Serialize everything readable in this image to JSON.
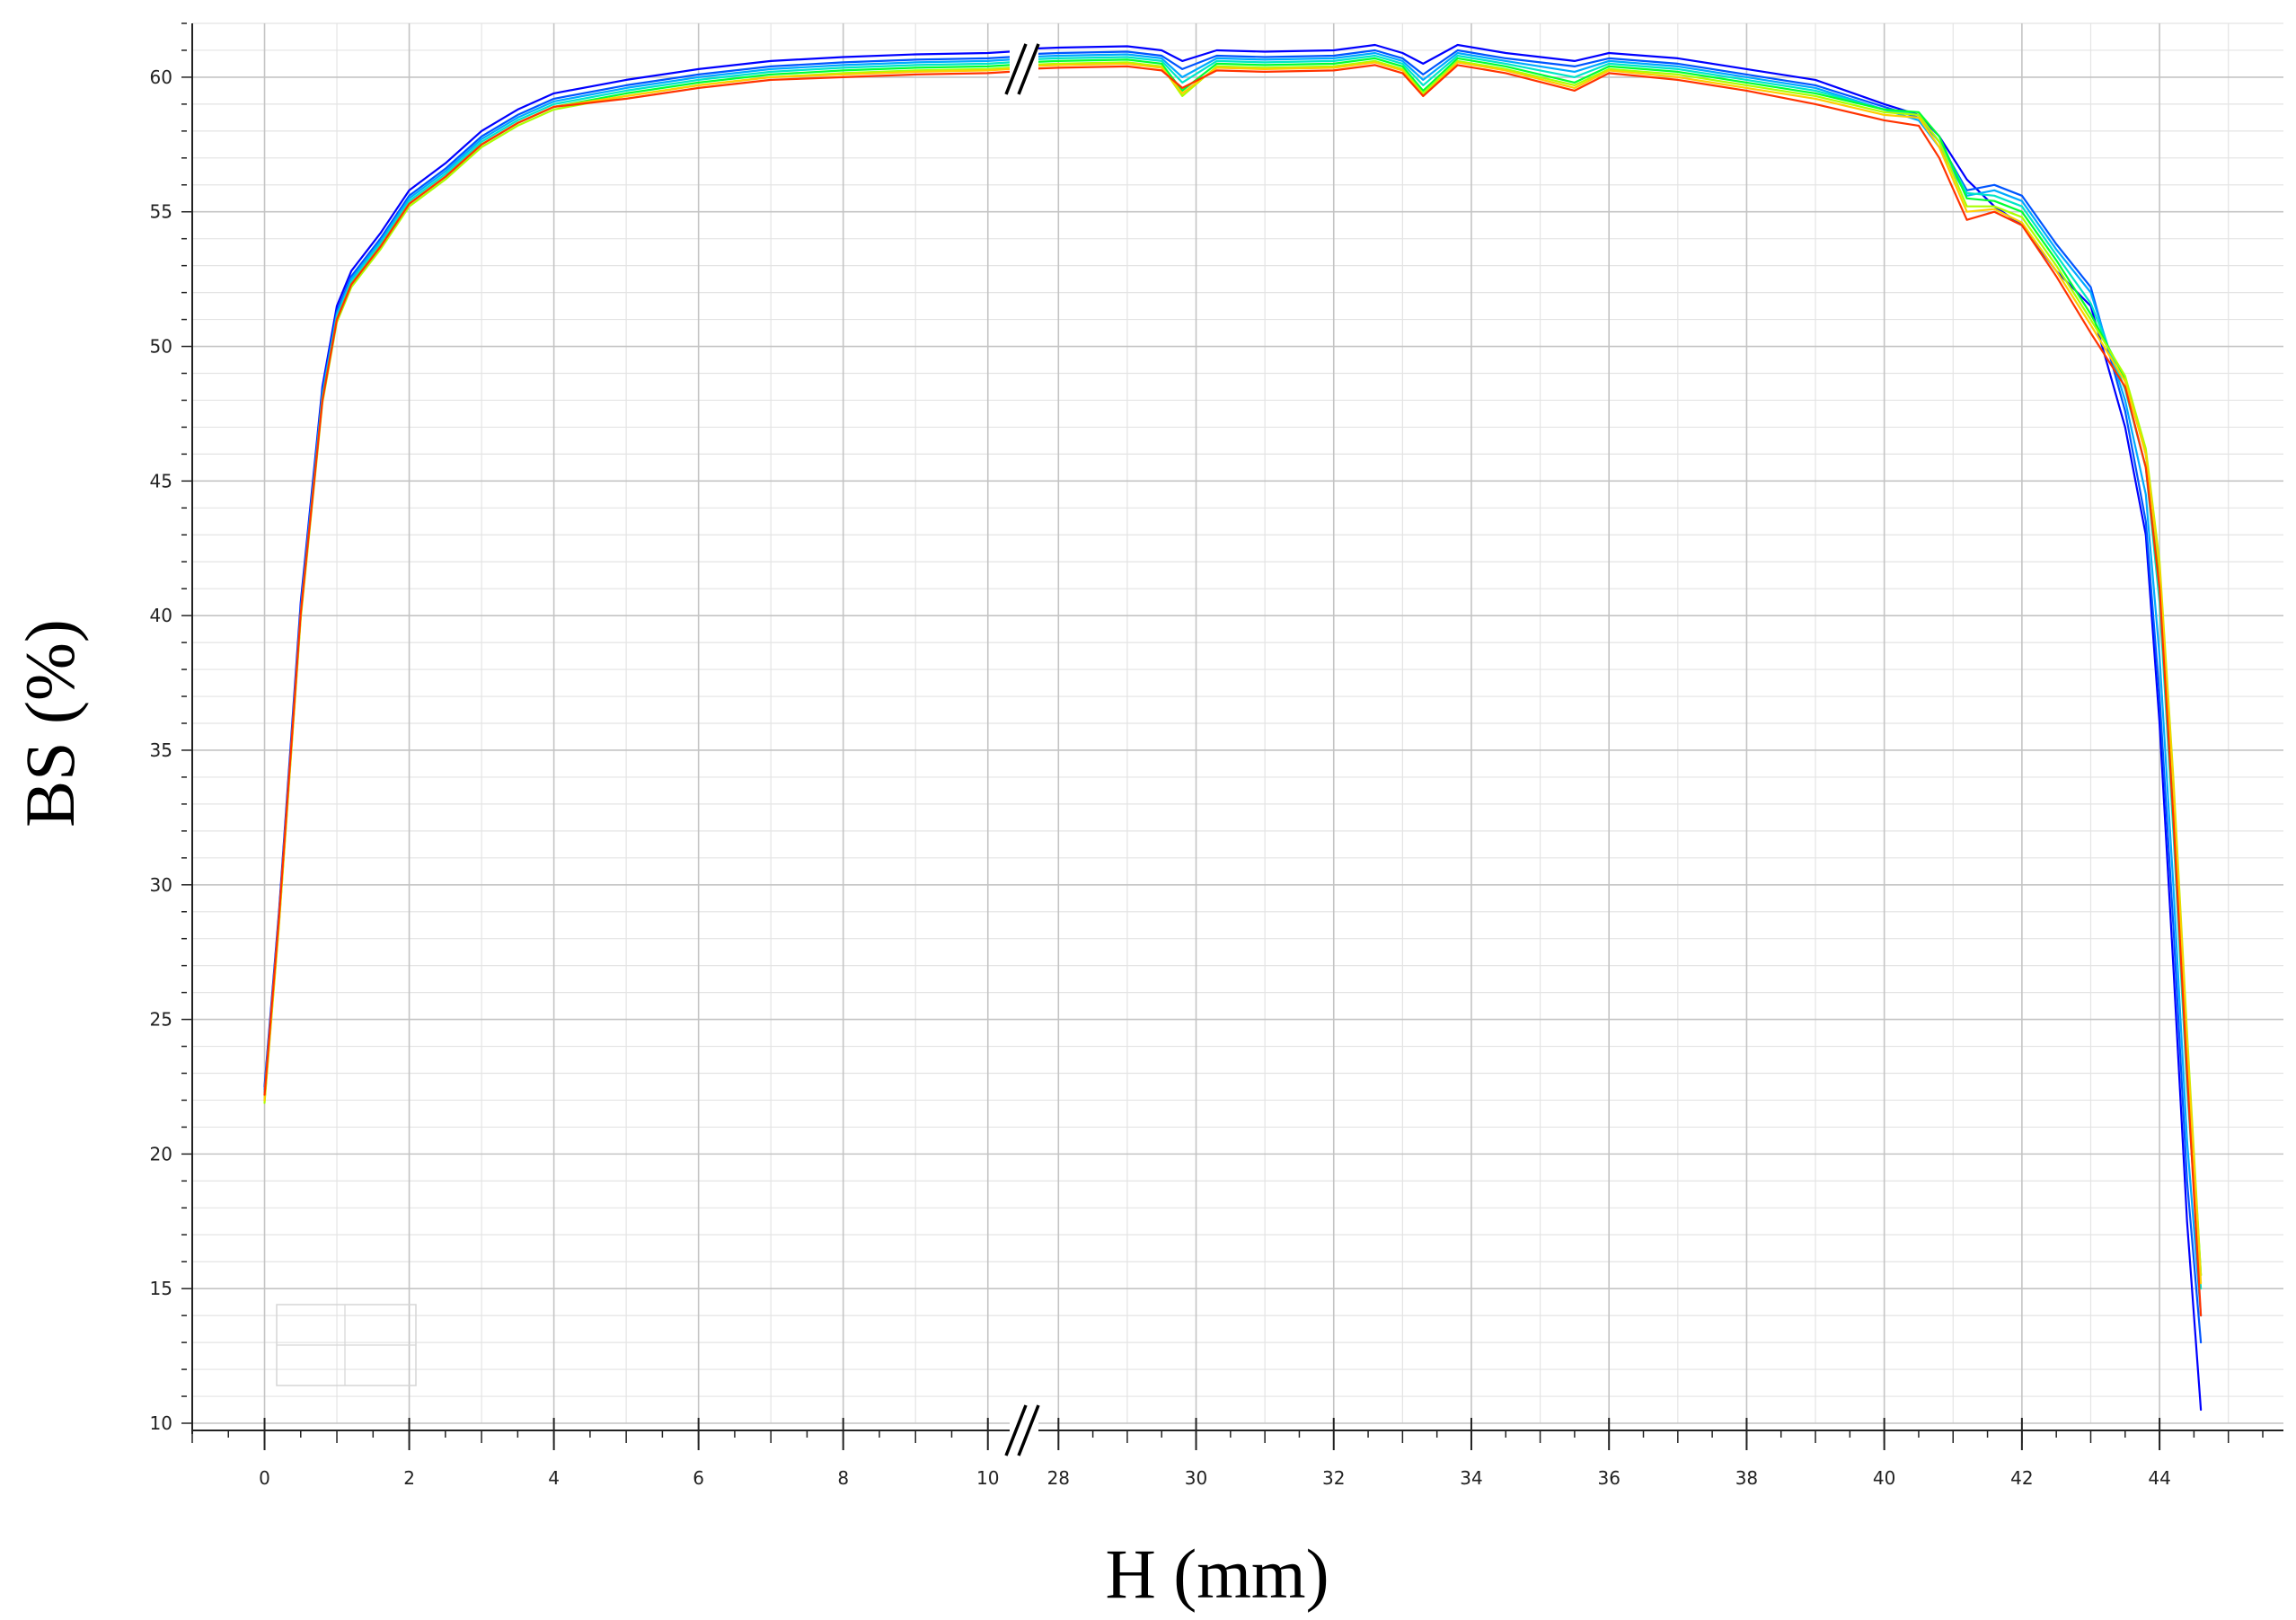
{
  "chart_data": {
    "type": "line",
    "title": "",
    "xlabel": "H (mm)",
    "ylabel": "BS (%)",
    "ylim": [
      10,
      62
    ],
    "y_ticks": [
      10,
      15,
      20,
      25,
      30,
      35,
      40,
      45,
      50,
      55,
      60
    ],
    "x_axis_break": true,
    "x_segments": [
      {
        "range": [
          -1,
          10.5
        ],
        "ticks": [
          0,
          2,
          4,
          6,
          8,
          10
        ]
      },
      {
        "range": [
          27.5,
          45.8
        ],
        "ticks": [
          28,
          30,
          32,
          34,
          36,
          38,
          40,
          42,
          44
        ]
      }
    ],
    "grid": true,
    "legend": "none",
    "colors": [
      "#0000ff",
      "#0055ff",
      "#00aaff",
      "#00e5c8",
      "#00ff33",
      "#aaff00",
      "#ffcc00",
      "#ff3300"
    ],
    "series": [
      {
        "x": [
          0,
          0.2,
          0.5,
          0.8,
          1.0,
          1.2,
          1.6,
          2.0,
          2.5,
          3.0,
          3.5,
          4.0,
          5.0,
          6.0,
          7.0,
          8.0,
          9.0,
          10.0,
          10.6,
          27.5,
          28.0,
          29.0,
          29.5,
          29.8,
          30.3,
          31.0,
          32.0,
          32.6,
          33.0,
          33.3,
          33.8,
          34.5,
          35.5,
          36.0,
          37.0,
          38.0,
          39.0,
          40.0,
          40.5,
          40.8,
          41.2,
          41.6,
          42.0,
          42.5,
          43.0,
          43.5,
          43.8,
          44.0,
          44.2,
          44.4,
          44.6
        ],
        "values": [
          22.5,
          29.0,
          40.5,
          48.5,
          51.5,
          52.8,
          54.2,
          55.8,
          56.8,
          58.0,
          58.8,
          59.4,
          59.9,
          60.3,
          60.6,
          60.75,
          60.85,
          60.9,
          61.0,
          61.05,
          61.1,
          61.15,
          61.0,
          60.6,
          61.0,
          60.95,
          61.0,
          61.2,
          60.9,
          60.5,
          61.2,
          60.9,
          60.6,
          60.9,
          60.7,
          60.3,
          59.9,
          59.0,
          58.6,
          57.8,
          56.2,
          55.2,
          54.5,
          52.8,
          51.5,
          47.0,
          43.0,
          36.0,
          27.0,
          17.5,
          10.5
        ]
      },
      {
        "x": [
          0,
          0.2,
          0.5,
          0.8,
          1.0,
          1.2,
          1.6,
          2.0,
          2.5,
          3.0,
          3.5,
          4.0,
          5.0,
          6.0,
          7.0,
          8.0,
          9.0,
          10.0,
          10.6,
          27.5,
          28.0,
          29.0,
          29.5,
          29.8,
          30.3,
          31.0,
          32.0,
          32.6,
          33.0,
          33.3,
          33.8,
          34.5,
          35.5,
          36.0,
          37.0,
          38.0,
          39.0,
          40.0,
          40.5,
          40.8,
          41.2,
          41.6,
          42.0,
          42.5,
          43.0,
          43.5,
          43.8,
          44.0,
          44.2,
          44.4,
          44.6
        ],
        "values": [
          22.4,
          28.9,
          40.3,
          48.3,
          51.3,
          52.6,
          54.0,
          55.6,
          56.6,
          57.8,
          58.6,
          59.2,
          59.7,
          60.1,
          60.4,
          60.55,
          60.65,
          60.7,
          60.8,
          60.85,
          60.9,
          60.95,
          60.8,
          60.3,
          60.8,
          60.75,
          60.8,
          61.0,
          60.7,
          60.1,
          61.0,
          60.7,
          60.4,
          60.7,
          60.5,
          60.1,
          59.7,
          58.9,
          58.5,
          57.6,
          55.8,
          56.0,
          55.6,
          53.8,
          52.2,
          47.6,
          43.5,
          37.0,
          28.5,
          19.0,
          13.0
        ]
      },
      {
        "x": [
          0,
          0.2,
          0.5,
          0.8,
          1.0,
          1.2,
          1.6,
          2.0,
          2.5,
          3.0,
          3.5,
          4.0,
          5.0,
          6.0,
          7.0,
          8.0,
          9.0,
          10.0,
          10.6,
          27.5,
          28.0,
          29.0,
          29.5,
          29.8,
          30.3,
          31.0,
          32.0,
          32.6,
          33.0,
          33.3,
          33.8,
          34.5,
          35.5,
          36.0,
          37.0,
          38.0,
          39.0,
          40.0,
          40.5,
          40.8,
          41.2,
          41.6,
          42.0,
          42.5,
          43.0,
          43.5,
          43.8,
          44.0,
          44.2,
          44.4,
          44.6
        ],
        "values": [
          22.3,
          28.8,
          40.2,
          48.2,
          51.2,
          52.5,
          53.9,
          55.5,
          56.5,
          57.7,
          58.5,
          59.1,
          59.6,
          60.0,
          60.3,
          60.45,
          60.55,
          60.6,
          60.7,
          60.75,
          60.8,
          60.85,
          60.7,
          60.0,
          60.7,
          60.65,
          60.7,
          60.9,
          60.6,
          59.9,
          60.9,
          60.6,
          60.2,
          60.6,
          60.4,
          60.0,
          59.6,
          58.8,
          58.4,
          57.4,
          55.6,
          55.8,
          55.4,
          53.6,
          52.0,
          48.0,
          44.5,
          38.5,
          30.0,
          20.5,
          14.0
        ]
      },
      {
        "x": [
          0,
          0.2,
          0.5,
          0.8,
          1.0,
          1.2,
          1.6,
          2.0,
          2.5,
          3.0,
          3.5,
          4.0,
          5.0,
          6.0,
          7.0,
          8.0,
          9.0,
          10.0,
          10.6,
          27.5,
          28.0,
          29.0,
          29.5,
          29.8,
          30.3,
          31.0,
          32.0,
          32.6,
          33.0,
          33.3,
          33.8,
          34.5,
          35.5,
          36.0,
          37.0,
          38.0,
          39.0,
          40.0,
          40.5,
          40.8,
          41.2,
          41.6,
          42.0,
          42.5,
          43.0,
          43.5,
          43.8,
          44.0,
          44.2,
          44.4,
          44.6
        ],
        "values": [
          22.2,
          28.7,
          40.1,
          48.1,
          51.1,
          52.4,
          53.8,
          55.4,
          56.4,
          57.6,
          58.4,
          59.0,
          59.5,
          59.9,
          60.2,
          60.35,
          60.45,
          60.5,
          60.6,
          60.65,
          60.7,
          60.75,
          60.6,
          59.8,
          60.6,
          60.55,
          60.6,
          60.8,
          60.5,
          59.7,
          60.8,
          60.5,
          60.0,
          60.5,
          60.3,
          59.9,
          59.5,
          58.8,
          58.6,
          57.6,
          55.7,
          55.6,
          55.2,
          53.4,
          51.6,
          48.4,
          45.5,
          40.5,
          32.0,
          22.5,
          15.0
        ]
      },
      {
        "x": [
          0,
          0.2,
          0.5,
          0.8,
          1.0,
          1.2,
          1.6,
          2.0,
          2.5,
          3.0,
          3.5,
          4.0,
          5.0,
          6.0,
          7.0,
          8.0,
          9.0,
          10.0,
          10.6,
          27.5,
          28.0,
          29.0,
          29.5,
          29.8,
          30.3,
          31.0,
          32.0,
          32.6,
          33.0,
          33.3,
          33.8,
          34.5,
          35.5,
          36.0,
          37.0,
          38.0,
          39.0,
          40.0,
          40.5,
          40.8,
          41.2,
          41.6,
          42.0,
          42.5,
          43.0,
          43.5,
          43.8,
          44.0,
          44.2,
          44.4,
          44.6
        ],
        "values": [
          22.0,
          28.6,
          40.0,
          48.0,
          51.0,
          52.3,
          53.7,
          55.3,
          56.3,
          57.5,
          58.3,
          58.9,
          59.4,
          59.8,
          60.1,
          60.25,
          60.35,
          60.4,
          60.5,
          60.55,
          60.6,
          60.65,
          60.5,
          59.5,
          60.5,
          60.45,
          60.5,
          60.7,
          60.4,
          59.5,
          60.7,
          60.4,
          59.8,
          60.4,
          60.2,
          59.8,
          59.4,
          58.8,
          58.7,
          57.8,
          55.5,
          55.4,
          55.0,
          53.2,
          51.2,
          48.8,
          46.0,
          41.5,
          33.5,
          24.0,
          15.5
        ]
      },
      {
        "x": [
          0,
          0.2,
          0.5,
          0.8,
          1.0,
          1.2,
          1.6,
          2.0,
          2.5,
          3.0,
          3.5,
          4.0,
          5.0,
          6.0,
          7.0,
          8.0,
          9.0,
          10.0,
          10.6,
          27.5,
          28.0,
          29.0,
          29.5,
          29.8,
          30.3,
          31.0,
          32.0,
          32.6,
          33.0,
          33.3,
          33.8,
          34.5,
          35.5,
          36.0,
          37.0,
          38.0,
          39.0,
          40.0,
          40.5,
          40.8,
          41.2,
          41.6,
          42.0,
          42.5,
          43.0,
          43.5,
          43.8,
          44.0,
          44.2,
          44.4,
          44.6
        ],
        "values": [
          21.9,
          28.5,
          39.9,
          47.9,
          50.9,
          52.2,
          53.6,
          55.2,
          56.2,
          57.4,
          58.2,
          58.8,
          59.3,
          59.7,
          60.0,
          60.15,
          60.25,
          60.3,
          60.4,
          60.45,
          60.5,
          60.55,
          60.4,
          59.3,
          60.4,
          60.35,
          60.4,
          60.6,
          60.3,
          59.4,
          60.6,
          60.3,
          59.7,
          60.3,
          60.1,
          59.7,
          59.3,
          58.7,
          58.6,
          57.6,
          55.2,
          55.2,
          54.8,
          53.0,
          51.0,
          48.9,
          46.2,
          42.0,
          34.0,
          24.5,
          15.5
        ]
      },
      {
        "x": [
          0,
          0.2,
          0.5,
          0.8,
          1.0,
          1.2,
          1.6,
          2.0,
          2.5,
          3.0,
          3.5,
          4.0,
          5.0,
          6.0,
          7.0,
          8.0,
          9.0,
          10.0,
          10.6,
          27.5,
          28.0,
          29.0,
          29.5,
          29.8,
          30.3,
          31.0,
          32.0,
          32.6,
          33.0,
          33.3,
          33.8,
          34.5,
          35.5,
          36.0,
          37.0,
          38.0,
          39.0,
          40.0,
          40.5,
          40.8,
          41.2,
          41.6,
          42.0,
          42.5,
          43.0,
          43.5,
          43.8,
          44.0,
          44.2,
          44.4,
          44.6
        ],
        "values": [
          22.0,
          28.6,
          40.0,
          48.0,
          51.0,
          52.3,
          53.7,
          55.3,
          56.3,
          57.5,
          58.3,
          58.9,
          59.3,
          59.7,
          60.0,
          60.1,
          60.2,
          60.25,
          60.35,
          60.4,
          60.45,
          60.5,
          60.35,
          59.4,
          60.35,
          60.3,
          60.35,
          60.55,
          60.25,
          59.3,
          60.55,
          60.25,
          59.6,
          60.25,
          60.0,
          59.6,
          59.2,
          58.6,
          58.5,
          57.4,
          55.0,
          55.1,
          54.6,
          52.8,
          50.8,
          48.7,
          46.0,
          41.8,
          33.8,
          24.2,
          15.2
        ]
      },
      {
        "x": [
          0,
          0.2,
          0.5,
          0.8,
          1.0,
          1.2,
          1.6,
          2.0,
          2.5,
          3.0,
          3.5,
          4.0,
          5.0,
          6.0,
          7.0,
          8.0,
          9.0,
          10.0,
          10.6,
          27.5,
          28.0,
          29.0,
          29.5,
          29.8,
          30.3,
          31.0,
          32.0,
          32.6,
          33.0,
          33.3,
          33.8,
          34.5,
          35.5,
          36.0,
          37.0,
          38.0,
          39.0,
          40.0,
          40.5,
          40.8,
          41.2,
          41.6,
          42.0,
          42.5,
          43.0,
          43.5,
          43.8,
          44.0,
          44.2,
          44.4,
          44.6
        ],
        "values": [
          22.2,
          28.8,
          40.1,
          48.0,
          51.0,
          52.3,
          53.7,
          55.3,
          56.3,
          57.5,
          58.3,
          58.9,
          59.2,
          59.6,
          59.9,
          60.0,
          60.1,
          60.15,
          60.25,
          60.3,
          60.35,
          60.4,
          60.25,
          59.6,
          60.25,
          60.2,
          60.25,
          60.45,
          60.15,
          59.3,
          60.45,
          60.15,
          59.5,
          60.15,
          59.9,
          59.5,
          59.0,
          58.4,
          58.2,
          57.0,
          54.7,
          55.0,
          54.5,
          52.6,
          50.5,
          48.5,
          45.5,
          41.0,
          32.5,
          23.0,
          14.0
        ]
      }
    ]
  }
}
